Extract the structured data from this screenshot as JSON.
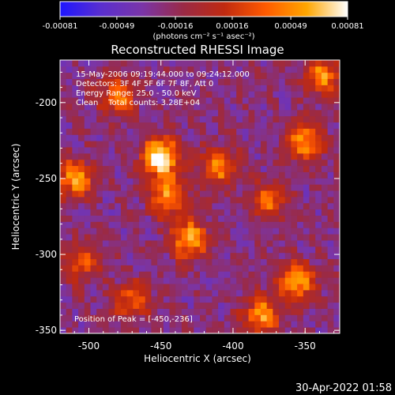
{
  "colorbar": {
    "tick_labels": [
      "-0.00081",
      "-0.00049",
      "-0.00016",
      "0.00016",
      "0.00049",
      "0.00081"
    ],
    "units_label": "(photons cm⁻² s⁻¹ asec⁻²)",
    "colors": [
      "#1e16ff",
      "#5a2fcf",
      "#7a35a8",
      "#9a2a46",
      "#c02a10",
      "#ff5a00",
      "#ffa600",
      "#ffffff"
    ]
  },
  "plot": {
    "title": "Reconstructed RHESSI Image",
    "annotations": [
      "15-May-2006 09:19:44.000 to 09:24:12.000",
      "Detectors: 3F 4F 5F 6F 7F 8F, Att 0",
      "Energy Range: 25.0 - 50.0 keV",
      "Clean    Total counts: 3.28E+04"
    ],
    "peak_label": "Position of Peak = [-450,-236]",
    "timestamp": "30-Apr-2022 01:58"
  },
  "chart_data": {
    "type": "heatmap",
    "title": "Reconstructed RHESSI Image",
    "xlabel": "Heliocentric X (arcsec)",
    "ylabel": "Heliocentric Y (arcsec)",
    "xlim": [
      -520,
      -326
    ],
    "ylim": [
      -352,
      -172
    ],
    "x_ticks": [
      -500,
      -450,
      -400,
      -350
    ],
    "x_tick_labels": [
      "-500",
      "-450",
      "-400",
      "-350"
    ],
    "y_ticks": [
      -350,
      -300,
      -250,
      -200
    ],
    "y_tick_labels": [
      "-350",
      "-300",
      "-250",
      "-200"
    ],
    "colorbar_range": [
      -0.00081,
      0.00081
    ],
    "peak_position": [
      -450,
      -236
    ],
    "bright_sources": [
      {
        "x": -450,
        "y": -236,
        "value": 0.00081
      },
      {
        "x": -445,
        "y": -262,
        "value": 0.00045
      },
      {
        "x": -430,
        "y": -290,
        "value": 0.00055
      },
      {
        "x": -510,
        "y": -250,
        "value": 0.0005
      },
      {
        "x": -350,
        "y": -225,
        "value": 0.0005
      },
      {
        "x": -338,
        "y": -182,
        "value": 0.00045
      },
      {
        "x": -355,
        "y": -318,
        "value": 0.0005
      },
      {
        "x": -380,
        "y": -340,
        "value": 0.00045
      },
      {
        "x": -410,
        "y": -242,
        "value": 0.0004
      },
      {
        "x": -375,
        "y": -265,
        "value": 0.0003
      },
      {
        "x": -480,
        "y": -195,
        "value": 0.00035
      },
      {
        "x": -505,
        "y": -305,
        "value": 0.00025
      },
      {
        "x": -470,
        "y": -330,
        "value": 0.0003
      }
    ]
  }
}
